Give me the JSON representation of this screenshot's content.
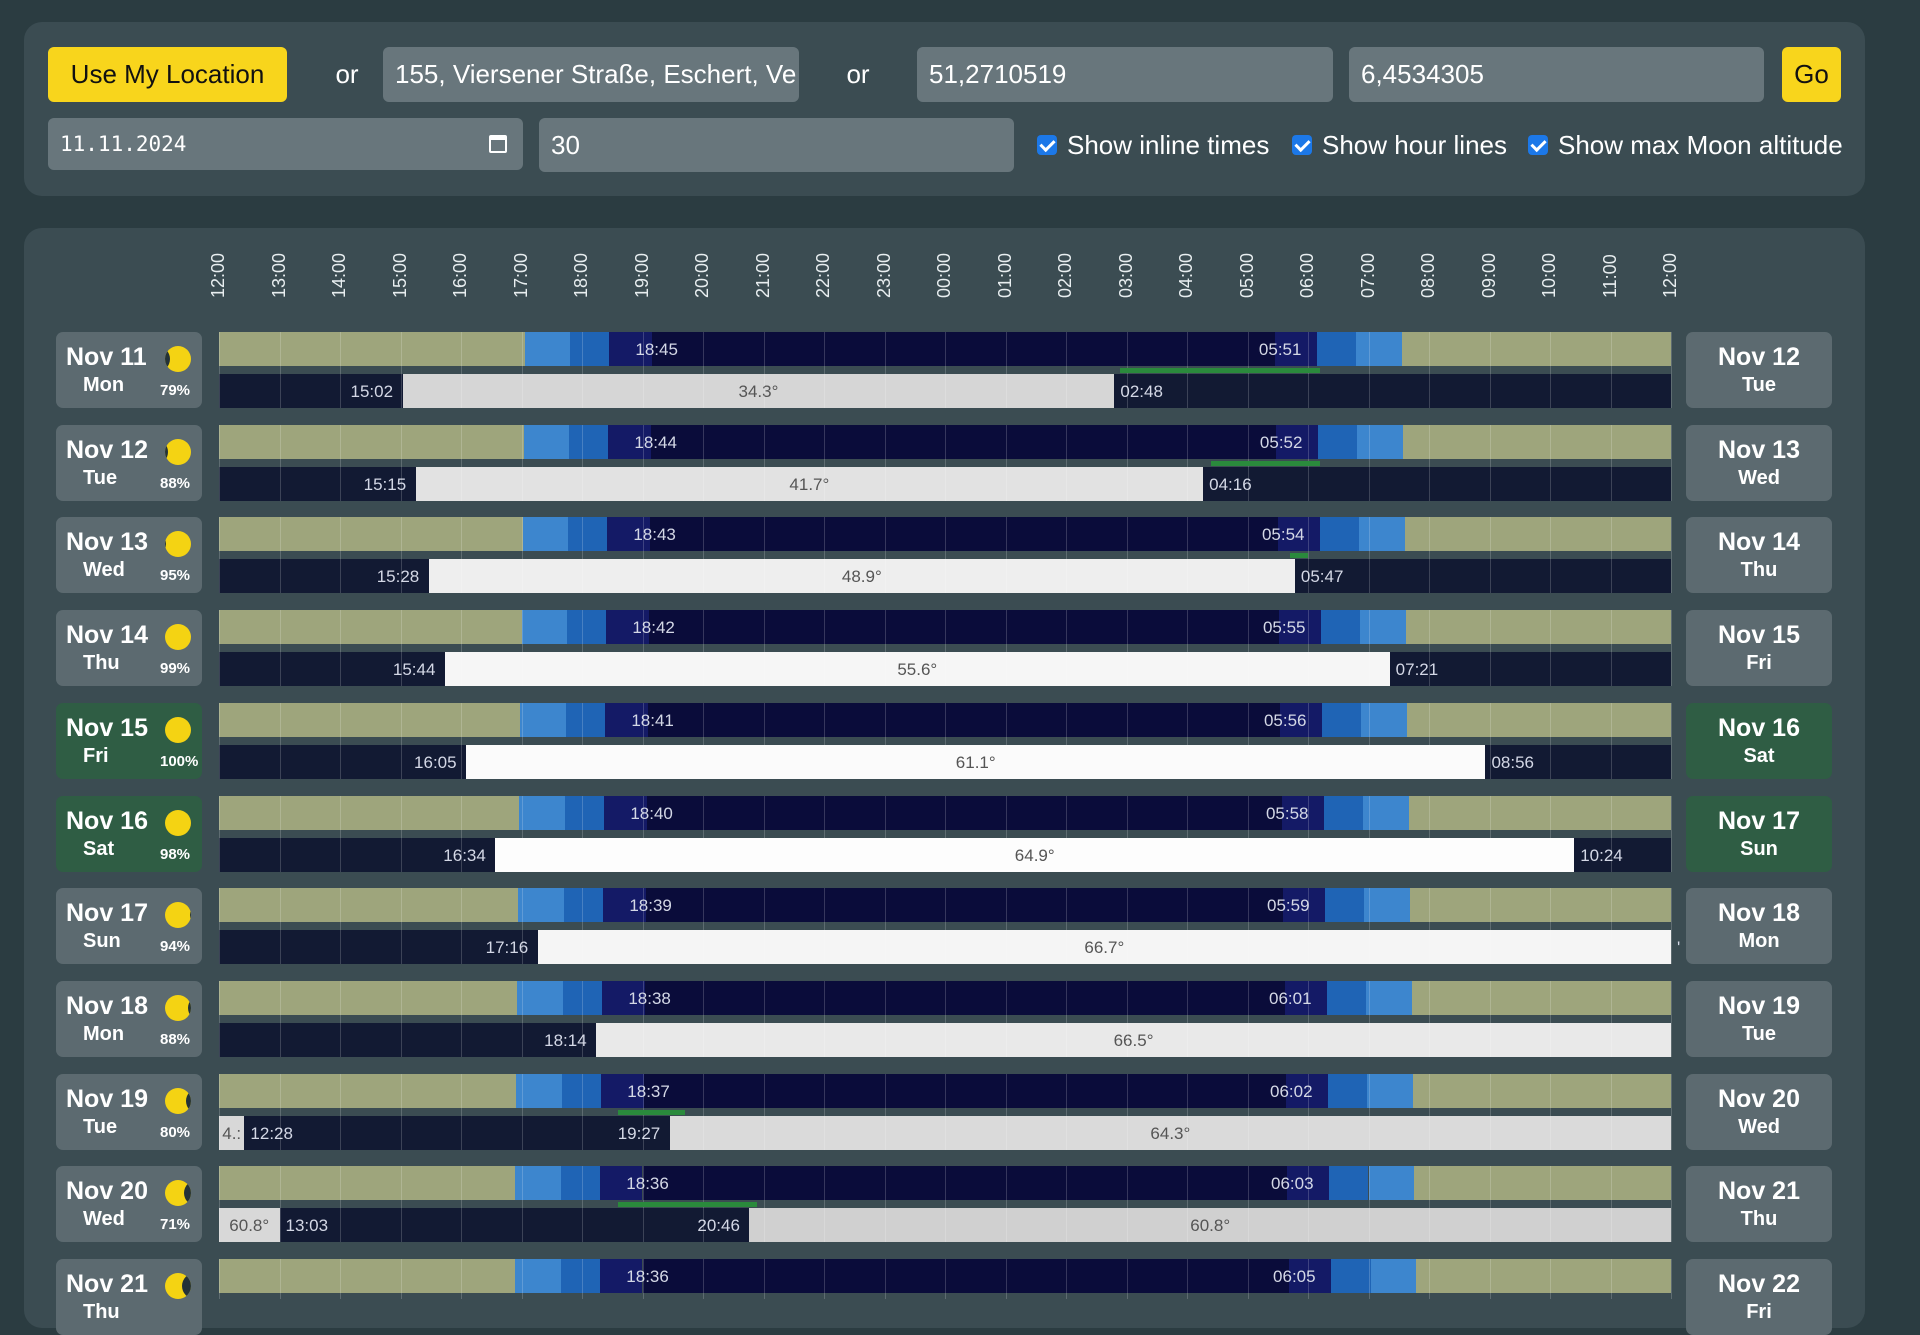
{
  "controls": {
    "use_location_label": "Use My Location",
    "or1": "or",
    "address_value": "155, Viersener Straße, Eschert, Ve",
    "or2": "or",
    "lat_value": "51,2710519",
    "lon_value": "6,4534305",
    "go_label": "Go",
    "date_value": "11.11.2024",
    "days_value": "30",
    "show_inline_times_label": "Show inline times",
    "show_hour_lines_label": "Show hour lines",
    "show_max_moon_alt_label": "Show max Moon altitude"
  },
  "hours": [
    "12:00",
    "13:00",
    "14:00",
    "15:00",
    "16:00",
    "17:00",
    "18:00",
    "19:00",
    "20:00",
    "21:00",
    "22:00",
    "23:00",
    "00:00",
    "01:00",
    "02:00",
    "03:00",
    "04:00",
    "05:00",
    "06:00",
    "07:00",
    "08:00",
    "09:00",
    "10:00",
    "11:00",
    "12:00"
  ],
  "colors": {
    "day": "#9ea57c",
    "civil": "#3d86ce",
    "nautical": "#1f64b5",
    "astro": "#141a66",
    "night": "#0a0c3a",
    "moonbar_bg": "#121a33",
    "highlight_green": "#2f5d44"
  },
  "rows": [
    {
      "left_date": "Nov 11",
      "left_wd": "Mon",
      "illum": "79%",
      "right_date": "Nov 12",
      "right_wd": "Tue",
      "dusk": "18:45",
      "dawn": "05:51",
      "moonrise": "15:02",
      "moonset": "02:48",
      "max_alt": "34.3°",
      "phase": 0.79,
      "waxing": true,
      "green": false
    },
    {
      "left_date": "Nov 12",
      "left_wd": "Tue",
      "illum": "88%",
      "right_date": "Nov 13",
      "right_wd": "Wed",
      "dusk": "18:44",
      "dawn": "05:52",
      "moonrise": "15:15",
      "moonset": "04:16",
      "max_alt": "41.7°",
      "phase": 0.88,
      "waxing": true,
      "green": false
    },
    {
      "left_date": "Nov 13",
      "left_wd": "Wed",
      "illum": "95%",
      "right_date": "Nov 14",
      "right_wd": "Thu",
      "dusk": "18:43",
      "dawn": "05:54",
      "moonrise": "15:28",
      "moonset": "05:47",
      "max_alt": "48.9°",
      "phase": 0.95,
      "waxing": true,
      "green": false
    },
    {
      "left_date": "Nov 14",
      "left_wd": "Thu",
      "illum": "99%",
      "right_date": "Nov 15",
      "right_wd": "Fri",
      "dusk": "18:42",
      "dawn": "05:55",
      "moonrise": "15:44",
      "moonset": "07:21",
      "max_alt": "55.6°",
      "phase": 0.99,
      "waxing": true,
      "green": false
    },
    {
      "left_date": "Nov 15",
      "left_wd": "Fri",
      "illum": "100%",
      "right_date": "Nov 16",
      "right_wd": "Sat",
      "dusk": "18:41",
      "dawn": "05:56",
      "moonrise": "16:05",
      "moonset": "08:56",
      "max_alt": "61.1°",
      "phase": 1.0,
      "waxing": true,
      "green": true
    },
    {
      "left_date": "Nov 16",
      "left_wd": "Sat",
      "illum": "98%",
      "right_date": "Nov 17",
      "right_wd": "Sun",
      "dusk": "18:40",
      "dawn": "05:58",
      "moonrise": "16:34",
      "moonset": "10:24",
      "max_alt": "64.9°",
      "phase": 0.98,
      "waxing": false,
      "green": true
    },
    {
      "left_date": "Nov 17",
      "left_wd": "Sun",
      "illum": "94%",
      "right_date": "Nov 18",
      "right_wd": "Mon",
      "dusk": "18:39",
      "dawn": "05:59",
      "moonrise": "17:16",
      "moonset": "'",
      "max_alt": "66.7°",
      "phase": 0.94,
      "waxing": false,
      "green": false
    },
    {
      "left_date": "Nov 18",
      "left_wd": "Mon",
      "illum": "88%",
      "right_date": "Nov 19",
      "right_wd": "Tue",
      "dusk": "18:38",
      "dawn": "06:01",
      "moonrise": "18:14",
      "moonset": "",
      "max_alt": "66.5°",
      "phase": 0.88,
      "waxing": false,
      "green": false
    },
    {
      "left_date": "Nov 19",
      "left_wd": "Tue",
      "illum": "80%",
      "right_date": "Nov 20",
      "right_wd": "Wed",
      "dusk": "18:37",
      "dawn": "06:02",
      "moonrise": "19:27",
      "moonset": "12:28",
      "max_alt": "64.3°",
      "prev_alt": "4.:",
      "phase": 0.8,
      "waxing": false,
      "green": false
    },
    {
      "left_date": "Nov 20",
      "left_wd": "Wed",
      "illum": "71%",
      "right_date": "Nov 21",
      "right_wd": "Thu",
      "dusk": "18:36",
      "dawn": "06:03",
      "moonrise": "20:46",
      "moonset": "13:03",
      "max_alt": "60.8°",
      "prev_alt": "60.8°",
      "phase": 0.71,
      "waxing": false,
      "green": false
    },
    {
      "left_date": "Nov 21",
      "left_wd": "Thu",
      "illum": "",
      "right_date": "Nov 22",
      "right_wd": "Fri",
      "dusk": "18:36",
      "dawn": "06:05",
      "moonrise": "",
      "moonset": "",
      "max_alt": "",
      "phase": 0.6,
      "waxing": false,
      "green": false
    }
  ]
}
